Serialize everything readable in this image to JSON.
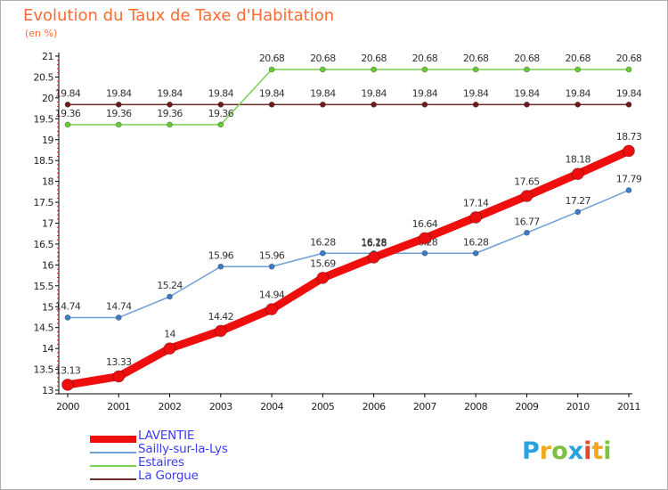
{
  "title": "Evolution du Taux de Taxe d'Habitation",
  "subtitle": "(en %)",
  "logo": {
    "text": "Proxiti",
    "letters": [
      {
        "ch": "P",
        "color": "#2ba2e0"
      },
      {
        "ch": "r",
        "color": "#f2a81d"
      },
      {
        "ch": "o",
        "color": "#7cc242"
      },
      {
        "ch": "x",
        "color": "#2ba2e0"
      },
      {
        "ch": "i",
        "color": "#e8452c"
      },
      {
        "ch": "t",
        "color": "#f2a81d"
      },
      {
        "ch": "i",
        "color": "#7cc242"
      }
    ]
  },
  "chart_data": {
    "type": "line",
    "title": "Evolution du Taux de Taxe d'Habitation",
    "subtitle": "(en %)",
    "x": [
      "2000",
      "2001",
      "2002",
      "2003",
      "2004",
      "2005",
      "2006",
      "2007",
      "2008",
      "2009",
      "2010",
      "2011"
    ],
    "ylim": [
      13,
      21
    ],
    "yticks": [
      "13",
      "13.5",
      "14",
      "14.5",
      "15",
      "15.5",
      "16",
      "16.5",
      "17",
      "17.5",
      "18",
      "18.5",
      "19",
      "19.5",
      "20",
      "20.5",
      "21"
    ],
    "grid": false,
    "legend_position": "bottom-left",
    "series": [
      {
        "name": "La Gorgue",
        "color": "#6e2b2b",
        "marker": "#6e1a1a",
        "width": 1.5,
        "r": 3,
        "values": [
          19.84,
          19.84,
          19.84,
          19.84,
          19.84,
          19.84,
          19.84,
          19.84,
          19.84,
          19.84,
          19.84,
          19.84
        ],
        "labels": [
          "19.84",
          "19.84",
          "19.84",
          "19.84",
          "19.84",
          "19.84",
          "19.84",
          "19.84",
          "19.84",
          "19.84",
          "19.84",
          "19.84"
        ]
      },
      {
        "name": "Estaires",
        "color": "#77d34a",
        "marker": "#66cc33",
        "width": 1.5,
        "r": 3,
        "values": [
          19.36,
          19.36,
          19.36,
          19.36,
          20.68,
          20.68,
          20.68,
          20.68,
          20.68,
          20.68,
          20.68,
          20.68
        ],
        "labels": [
          "19.36",
          "19.36",
          "19.36",
          "19.36",
          "20.68",
          "20.68",
          "20.68",
          "20.68",
          "20.68",
          "20.68",
          "20.68",
          "20.68"
        ]
      },
      {
        "name": "Sailly-sur-la-Lys",
        "color": "#6e9fd6",
        "marker": "#3d7cc9",
        "width": 1.5,
        "r": 3,
        "values": [
          14.74,
          14.74,
          15.24,
          15.96,
          15.96,
          16.28,
          16.28,
          16.28,
          16.28,
          16.77,
          17.27,
          17.79
        ],
        "labels": [
          "14.74",
          "14.74",
          "15.24",
          "15.96",
          "15.96",
          "16.28",
          "16.28",
          "16.28",
          "16.28",
          "16.77",
          "17.27",
          "17.79"
        ]
      },
      {
        "name": "LAVENTIE",
        "color": "#ee0e0e",
        "marker": "#ee0e0e",
        "width": 9,
        "r": 6.5,
        "values": [
          13.13,
          13.33,
          14,
          14.42,
          14.94,
          15.69,
          16.18,
          16.64,
          17.14,
          17.65,
          18.18,
          18.73
        ],
        "labels": [
          "13.13",
          "13.33",
          "14",
          "14.42",
          "14.94",
          "15.69",
          "16.18",
          "16.64",
          "17.14",
          "17.65",
          "18.18",
          "18.73"
        ]
      }
    ],
    "legend": [
      "LAVENTIE",
      "Sailly-sur-la-Lys",
      "Estaires",
      "La Gorgue"
    ]
  }
}
